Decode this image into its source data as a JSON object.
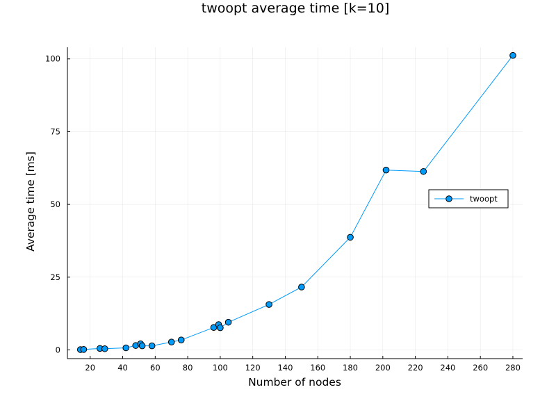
{
  "chart_data": {
    "type": "line",
    "title": "twoopt average time [k=10]",
    "xlabel": "Number of nodes",
    "ylabel": "Average time [ms]",
    "xlim": [
      6,
      286
    ],
    "ylim": [
      -3,
      104
    ],
    "xticks": [
      20,
      40,
      60,
      80,
      100,
      120,
      140,
      160,
      180,
      200,
      220,
      240,
      260,
      280
    ],
    "yticks": [
      0,
      25,
      50,
      75,
      100
    ],
    "grid": true,
    "legend_position": "right",
    "series": [
      {
        "name": "twoopt",
        "color": "#009af9",
        "marker": "circle",
        "x": [
          14,
          16,
          26,
          29,
          42,
          48,
          51,
          52,
          58,
          70,
          76,
          96,
          99,
          100,
          105,
          130,
          150,
          180,
          202,
          225,
          280
        ],
        "y": [
          0.1,
          0.15,
          0.5,
          0.4,
          0.7,
          1.5,
          2.1,
          1.4,
          1.4,
          2.7,
          3.4,
          7.7,
          8.7,
          7.6,
          9.5,
          15.6,
          21.6,
          38.7,
          61.8,
          61.3,
          101.2
        ]
      }
    ]
  }
}
